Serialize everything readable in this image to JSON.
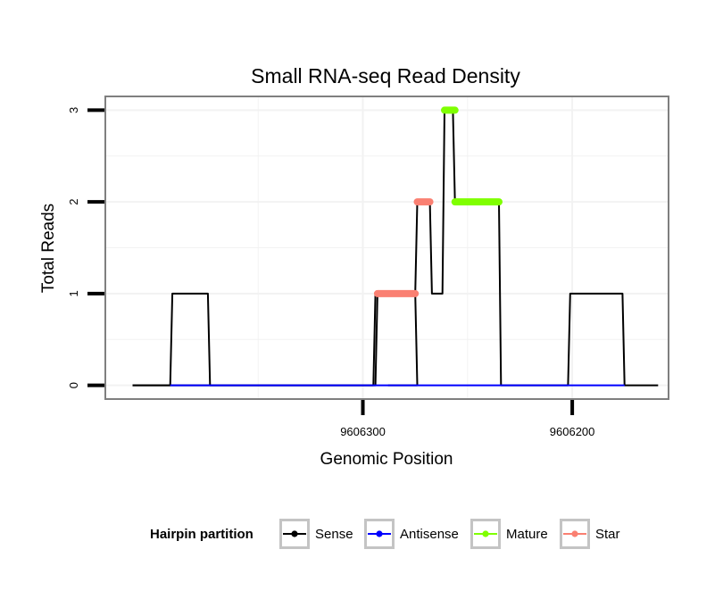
{
  "chart_data": {
    "type": "line",
    "title": "Small RNA-seq Read Density",
    "xlabel": "Genomic Position",
    "ylabel": "Total Reads",
    "x_reversed": true,
    "xlim": [
      9606423,
      9606154
    ],
    "ylim": [
      -0.15,
      3.15
    ],
    "x_ticks": [
      9606300,
      9606200
    ],
    "x_tick_labels": [
      "9606300",
      "9606200"
    ],
    "y_ticks": [
      0,
      1,
      2,
      3
    ],
    "y_tick_labels": [
      "0",
      "1",
      "2",
      "3"
    ],
    "grid": true,
    "legend_position": "bottom",
    "legend_title": "Hairpin partition",
    "colors": {
      "Sense": "#000000",
      "Antisense": "#0000ff",
      "Mature": "#7fff00",
      "Star": "#fa8072"
    },
    "series": [
      {
        "name": "Sense",
        "type": "line",
        "points": [
          [
            9606410,
            0
          ],
          [
            9606392,
            0
          ],
          [
            9606391,
            1
          ],
          [
            9606374,
            1
          ],
          [
            9606373,
            0
          ],
          [
            9606295,
            0
          ],
          [
            9606294,
            1
          ],
          [
            9606275,
            1
          ],
          [
            9606274,
            0
          ],
          [
            9606288,
            0
          ]
        ]
      },
      {
        "name": "Sense",
        "type": "line",
        "points": [
          [
            9606410,
            0
          ],
          [
            9606294,
            0
          ],
          [
            9606293,
            1
          ],
          [
            9606275,
            1
          ],
          [
            9606274,
            2
          ],
          [
            9606268,
            2
          ],
          [
            9606267,
            1
          ],
          [
            9606262,
            1
          ],
          [
            9606261,
            3
          ],
          [
            9606257,
            3
          ],
          [
            9606256,
            2
          ],
          [
            9606235,
            2
          ],
          [
            9606234,
            0
          ],
          [
            9606202,
            0
          ],
          [
            9606201,
            1
          ],
          [
            9606176,
            1
          ],
          [
            9606175,
            0
          ],
          [
            9606159,
            0
          ]
        ]
      },
      {
        "name": "Antisense",
        "points": [
          [
            9606392,
            0
          ],
          [
            9606373,
            0
          ],
          [
            9606294,
            0
          ],
          [
            9606234,
            0
          ],
          [
            9606201,
            0
          ],
          [
            9606175,
            0
          ]
        ]
      },
      {
        "name": "Mature",
        "segments": [
          {
            "start": 9606261,
            "end": 9606256,
            "value": 3
          },
          {
            "start": 9606256,
            "end": 9606235,
            "value": 2
          }
        ]
      },
      {
        "name": "Star",
        "segments": [
          {
            "start": 9606293,
            "end": 9606275,
            "value": 1
          },
          {
            "start": 9606274,
            "end": 9606268,
            "value": 2
          }
        ]
      }
    ],
    "legend": [
      "Sense",
      "Antisense",
      "Mature",
      "Star"
    ]
  }
}
